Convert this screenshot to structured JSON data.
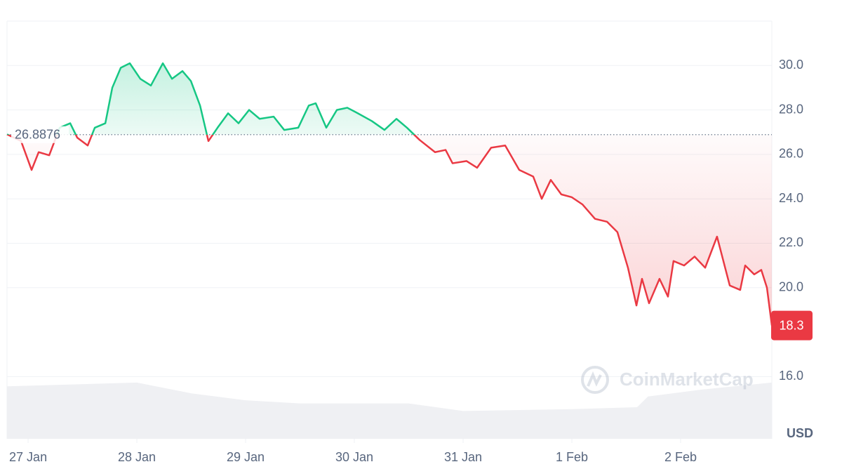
{
  "chart_data": {
    "type": "line",
    "baseline": 26.8876,
    "baseline_label": "26.8876",
    "current_label": "18.3",
    "unit": "USD",
    "watermark": "CoinMarketCap",
    "up_color": "#16c784",
    "down_color": "#ea3943",
    "grid": true,
    "xlim": [
      -0.194,
      6.839
    ],
    "xticks": [
      {
        "value": 0,
        "label": "27 Jan"
      },
      {
        "value": 1,
        "label": "28 Jan"
      },
      {
        "value": 2,
        "label": "29 Jan"
      },
      {
        "value": 3,
        "label": "30 Jan"
      },
      {
        "value": 4,
        "label": "31 Jan"
      },
      {
        "value": 5,
        "label": "1 Feb"
      },
      {
        "value": 6,
        "label": "2 Feb"
      }
    ],
    "ylim": [
      13.2,
      32
    ],
    "yticks": [
      {
        "value": 16,
        "label": "16.0"
      },
      {
        "value": 20,
        "label": "20.0"
      },
      {
        "value": 22,
        "label": "22.0"
      },
      {
        "value": 24,
        "label": "24.0"
      },
      {
        "value": 26,
        "label": "26.0"
      },
      {
        "value": 28,
        "label": "28.0"
      },
      {
        "value": 30,
        "label": "30.0"
      }
    ],
    "y2lim": [
      0,
      100
    ],
    "series": [
      {
        "name": "Price",
        "x": [
          -0.194,
          -0.065,
          0.032,
          0.097,
          0.194,
          0.29,
          0.387,
          0.452,
          0.548,
          0.613,
          0.71,
          0.774,
          0.852,
          0.935,
          1.032,
          1.129,
          1.239,
          1.323,
          1.419,
          1.497,
          1.581,
          1.658,
          1.742,
          1.839,
          1.935,
          2.032,
          2.129,
          2.258,
          2.355,
          2.484,
          2.581,
          2.645,
          2.742,
          2.839,
          2.935,
          3.032,
          3.161,
          3.277,
          3.387,
          3.484,
          3.6,
          3.742,
          3.839,
          3.903,
          4.032,
          4.129,
          4.258,
          4.387,
          4.516,
          4.645,
          4.723,
          4.806,
          4.903,
          5.0,
          5.097,
          5.213,
          5.323,
          5.419,
          5.516,
          5.594,
          5.645,
          5.71,
          5.806,
          5.884,
          5.935,
          6.032,
          6.129,
          6.226,
          6.335,
          6.452,
          6.548,
          6.594,
          6.677,
          6.742,
          6.794,
          6.839
        ],
        "values": [
          26.9,
          26.6,
          25.3,
          26.1,
          25.96,
          27.2,
          27.4,
          26.75,
          26.4,
          27.2,
          27.4,
          29.0,
          29.9,
          30.1,
          29.4,
          29.1,
          30.1,
          29.4,
          29.75,
          29.3,
          28.2,
          26.6,
          27.2,
          27.85,
          27.4,
          28.0,
          27.6,
          27.7,
          27.1,
          27.2,
          28.2,
          28.3,
          27.2,
          28.0,
          28.1,
          27.85,
          27.5,
          27.1,
          27.6,
          27.2,
          26.65,
          26.1,
          26.2,
          25.6,
          25.7,
          25.4,
          26.3,
          26.4,
          25.3,
          25.0,
          24.0,
          24.85,
          24.2,
          24.07,
          23.75,
          23.1,
          22.97,
          22.5,
          20.9,
          19.2,
          20.4,
          19.3,
          20.4,
          19.6,
          21.2,
          21.0,
          21.4,
          20.9,
          22.3,
          20.1,
          19.9,
          21.0,
          20.6,
          20.8,
          20.0,
          18.3
        ]
      },
      {
        "name": "Volume",
        "axis": "y2",
        "color": "#eff0f3",
        "x": [
          -0.194,
          0.4,
          1.0,
          1.5,
          2.0,
          2.5,
          3.5,
          4.0,
          5.0,
          5.6,
          5.7,
          6.2,
          6.839
        ],
        "values": [
          83,
          86,
          89,
          72,
          61,
          56,
          56,
          44,
          47,
          50,
          67,
          78,
          89
        ]
      }
    ]
  }
}
